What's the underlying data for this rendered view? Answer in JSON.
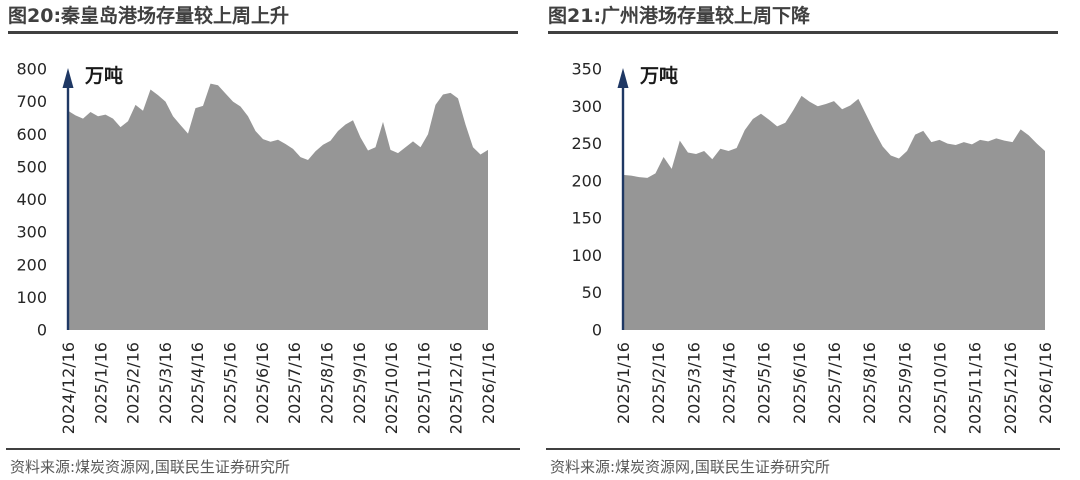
{
  "colors": {
    "area_fill": "#969696",
    "axis_line": "#1f3864",
    "title_text": "#404040",
    "tick_text": "#262626",
    "source_text": "#595959",
    "rule": "#404040",
    "background": "#ffffff"
  },
  "chart_data": [
    {
      "type": "area",
      "title": "图20:秦皇岛港场存量较上周上升",
      "unit": "万吨",
      "ylim": [
        0,
        800
      ],
      "ytick_step": 100,
      "grid": false,
      "legend": false,
      "x_tick_labels": [
        "2024/12/16",
        "2025/1/16",
        "2025/2/16",
        "2025/3/16",
        "2025/4/16",
        "2025/5/16",
        "2025/6/16",
        "2025/7/16",
        "2025/8/16",
        "2025/9/16",
        "2025/10/16",
        "2025/11/16",
        "2025/12/16",
        "2026/1/16"
      ],
      "values": [
        672,
        658,
        648,
        668,
        655,
        660,
        648,
        622,
        640,
        690,
        672,
        737,
        720,
        700,
        655,
        628,
        602,
        680,
        687,
        755,
        750,
        725,
        700,
        685,
        655,
        610,
        585,
        577,
        583,
        570,
        555,
        530,
        521,
        548,
        568,
        580,
        610,
        630,
        643,
        590,
        550,
        560,
        638,
        552,
        542,
        560,
        578,
        560,
        600,
        690,
        722,
        727,
        710,
        630,
        560,
        538,
        552
      ],
      "source": "资料来源:煤炭资源网,国联民生证券研究所"
    },
    {
      "type": "area",
      "title": "图21:广州港场存量较上周下降",
      "unit": "万吨",
      "ylim": [
        0,
        350
      ],
      "ytick_step": 50,
      "grid": false,
      "legend": false,
      "x_tick_labels": [
        "2025/1/16",
        "2025/2/16",
        "2025/3/16",
        "2025/4/16",
        "2025/5/16",
        "2025/6/16",
        "2025/7/16",
        "2025/8/16",
        "2025/9/16",
        "2025/10/16",
        "2025/11/16",
        "2025/12/16",
        "2026/1/16"
      ],
      "values": [
        208,
        207,
        205,
        204,
        210,
        232,
        216,
        254,
        238,
        236,
        240,
        229,
        243,
        240,
        244,
        268,
        283,
        290,
        282,
        273,
        278,
        295,
        314,
        306,
        300,
        303,
        307,
        296,
        301,
        310,
        288,
        266,
        246,
        234,
        230,
        240,
        262,
        267,
        252,
        255,
        250,
        248,
        252,
        249,
        255,
        253,
        257,
        254,
        252,
        269,
        261,
        250,
        240
      ],
      "source": "资料来源:煤炭资源网,国联民生证券研究所"
    }
  ]
}
